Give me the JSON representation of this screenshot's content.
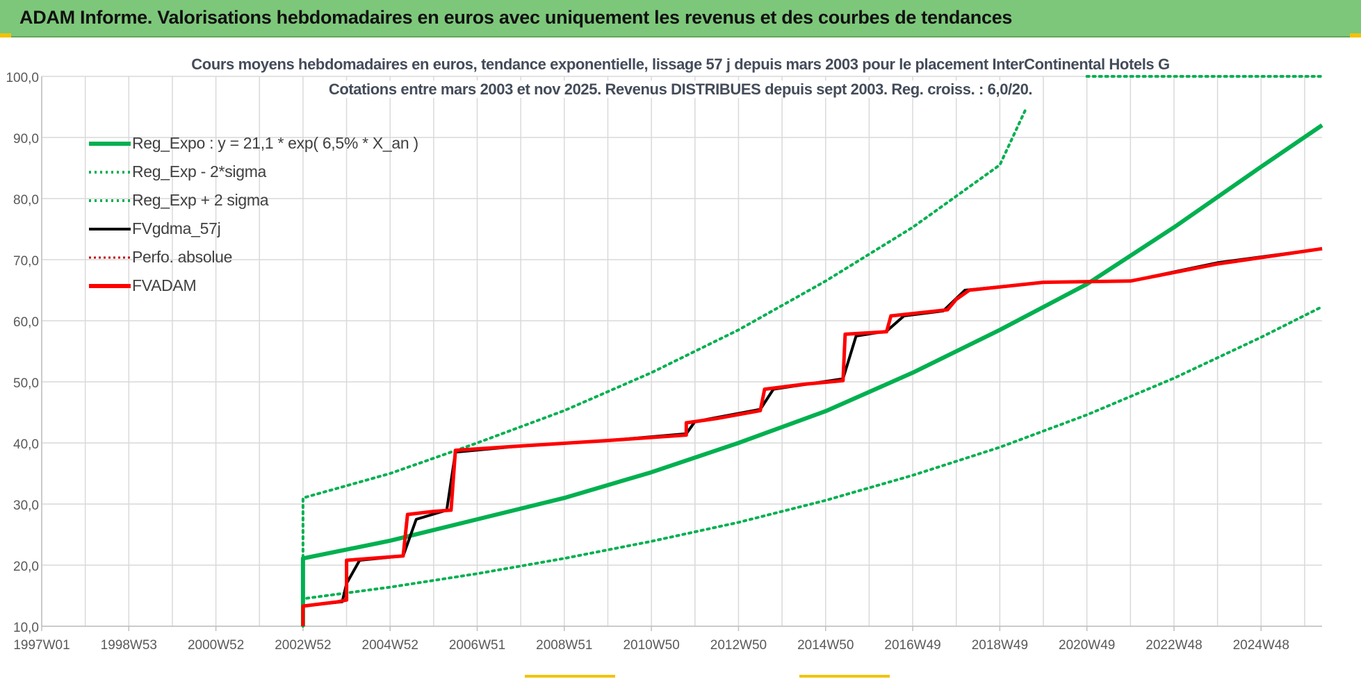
{
  "header": {
    "title": "ADAM Informe. Valorisations hebdomadaires en euros avec uniquement les revenus et des courbes de tendances"
  },
  "colors": {
    "header_bg": "#7dc77a",
    "green": "#00b050",
    "red": "#ff0000",
    "black": "#000000",
    "dotted_green": "#00b050",
    "dotted_red": "#c00000"
  },
  "chart_data": {
    "type": "line",
    "title": "Cours moyens hebdomadaires en euros, tendance exponentielle, lissage 57 j depuis mars 2003 pour le placement InterContinental Hotels G",
    "subtitle": "Cotations entre mars 2003 et nov 2025. Revenus DISTRIBUES depuis sept 2003. Reg. croiss. : 6,0/20.",
    "xlabel": "",
    "ylabel": "",
    "ylim": [
      10,
      100
    ],
    "y_ticks": [
      "10,0",
      "20,0",
      "30,0",
      "40,0",
      "50,0",
      "60,0",
      "70,0",
      "80,0",
      "90,0",
      "100,0"
    ],
    "x_ticks": [
      "1997W01",
      "1998W53",
      "2000W52",
      "2002W52",
      "2004W52",
      "2006W51",
      "2008W51",
      "2010W50",
      "2012W50",
      "2014W50",
      "2016W49",
      "2018W49",
      "2020W49",
      "2022W48",
      "2024W48"
    ],
    "xlim": [
      1997.0,
      2026.4
    ],
    "grid": true,
    "legend_position": "top-left",
    "series": [
      {
        "name": "Reg_Expo : y = 21,1 * exp( 6,5% *  X_an )",
        "style": "solid",
        "color": "#00b050",
        "x": [
          2003.0,
          2003.0,
          2005,
          2007,
          2009,
          2011,
          2013,
          2015,
          2017,
          2019,
          2021,
          2023,
          2025,
          2026.4
        ],
        "y": [
          10.0,
          21.1,
          24.0,
          27.5,
          31.0,
          35.2,
          40.0,
          45.2,
          51.5,
          58.5,
          66.0,
          75.3,
          85.2,
          92.0
        ]
      },
      {
        "name": "Reg_Exp - 2*sigma",
        "style": "dotted",
        "color": "#00b050",
        "x": [
          2003.0,
          2003.0,
          2005,
          2007,
          2009,
          2011,
          2013,
          2015,
          2017,
          2019,
          2021,
          2023,
          2025,
          2026.4
        ],
        "y": [
          10.0,
          14.5,
          16.4,
          18.6,
          21.1,
          23.9,
          27.0,
          30.6,
          34.7,
          39.3,
          44.6,
          50.6,
          57.3,
          62.3
        ]
      },
      {
        "name": "Reg_Exp + 2 sigma",
        "style": "dotted",
        "color": "#00b050",
        "x": [
          2003.0,
          2003.0,
          2005,
          2007,
          2009,
          2011,
          2013,
          2015,
          2017,
          2019,
          2019.6
        ],
        "y": [
          10.0,
          31.0,
          35.0,
          40.0,
          45.3,
          51.5,
          58.5,
          66.5,
          75.3,
          85.5,
          94.7
        ]
      },
      {
        "name": "FVgdma_57j",
        "style": "solid",
        "color": "#000000",
        "x": [
          2003.0,
          2003.9,
          2004.0,
          2004.3,
          2005.3,
          2005.6,
          2006.3,
          2006.5,
          2008.0,
          2010.0,
          2011.8,
          2012.0,
          2013.5,
          2013.8,
          2015.4,
          2015.7,
          2016.4,
          2016.8,
          2017.7,
          2018.2,
          2020.0,
          2022.0,
          2024.0,
          2026.4
        ],
        "y": [
          13.3,
          14.0,
          17.0,
          20.8,
          21.5,
          27.5,
          29.0,
          38.5,
          39.5,
          40.4,
          41.5,
          43.5,
          45.5,
          48.8,
          50.5,
          57.5,
          58.3,
          60.8,
          61.6,
          65.0,
          66.3,
          66.5,
          69.5,
          71.8
        ]
      },
      {
        "name": "Perfo. absolue",
        "style": "dotted",
        "color": "#c00000",
        "x": [
          2003.0,
          2026.4
        ],
        "y": [
          13.3,
          71.8
        ]
      },
      {
        "name": "FVADAM",
        "style": "solid",
        "color": "#ff0000",
        "x": [
          2003.0,
          2003.0,
          2003.8,
          2004.0,
          2004.0,
          2005.3,
          2005.4,
          2006.0,
          2006.4,
          2006.5,
          2008.0,
          2010.0,
          2011.8,
          2011.8,
          2012.5,
          2013.5,
          2013.6,
          2014.5,
          2015.4,
          2015.45,
          2016.4,
          2016.5,
          2017.8,
          2018.0,
          2018.3,
          2020.0,
          2022.0,
          2024.0,
          2026.4
        ],
        "y": [
          10.0,
          13.3,
          14.0,
          14.3,
          20.8,
          21.5,
          28.3,
          28.8,
          29.0,
          38.8,
          39.5,
          40.4,
          41.3,
          43.3,
          44.0,
          45.3,
          48.8,
          49.6,
          50.2,
          57.8,
          58.2,
          60.8,
          61.8,
          63.5,
          65.0,
          66.3,
          66.5,
          69.3,
          71.8
        ]
      }
    ]
  }
}
